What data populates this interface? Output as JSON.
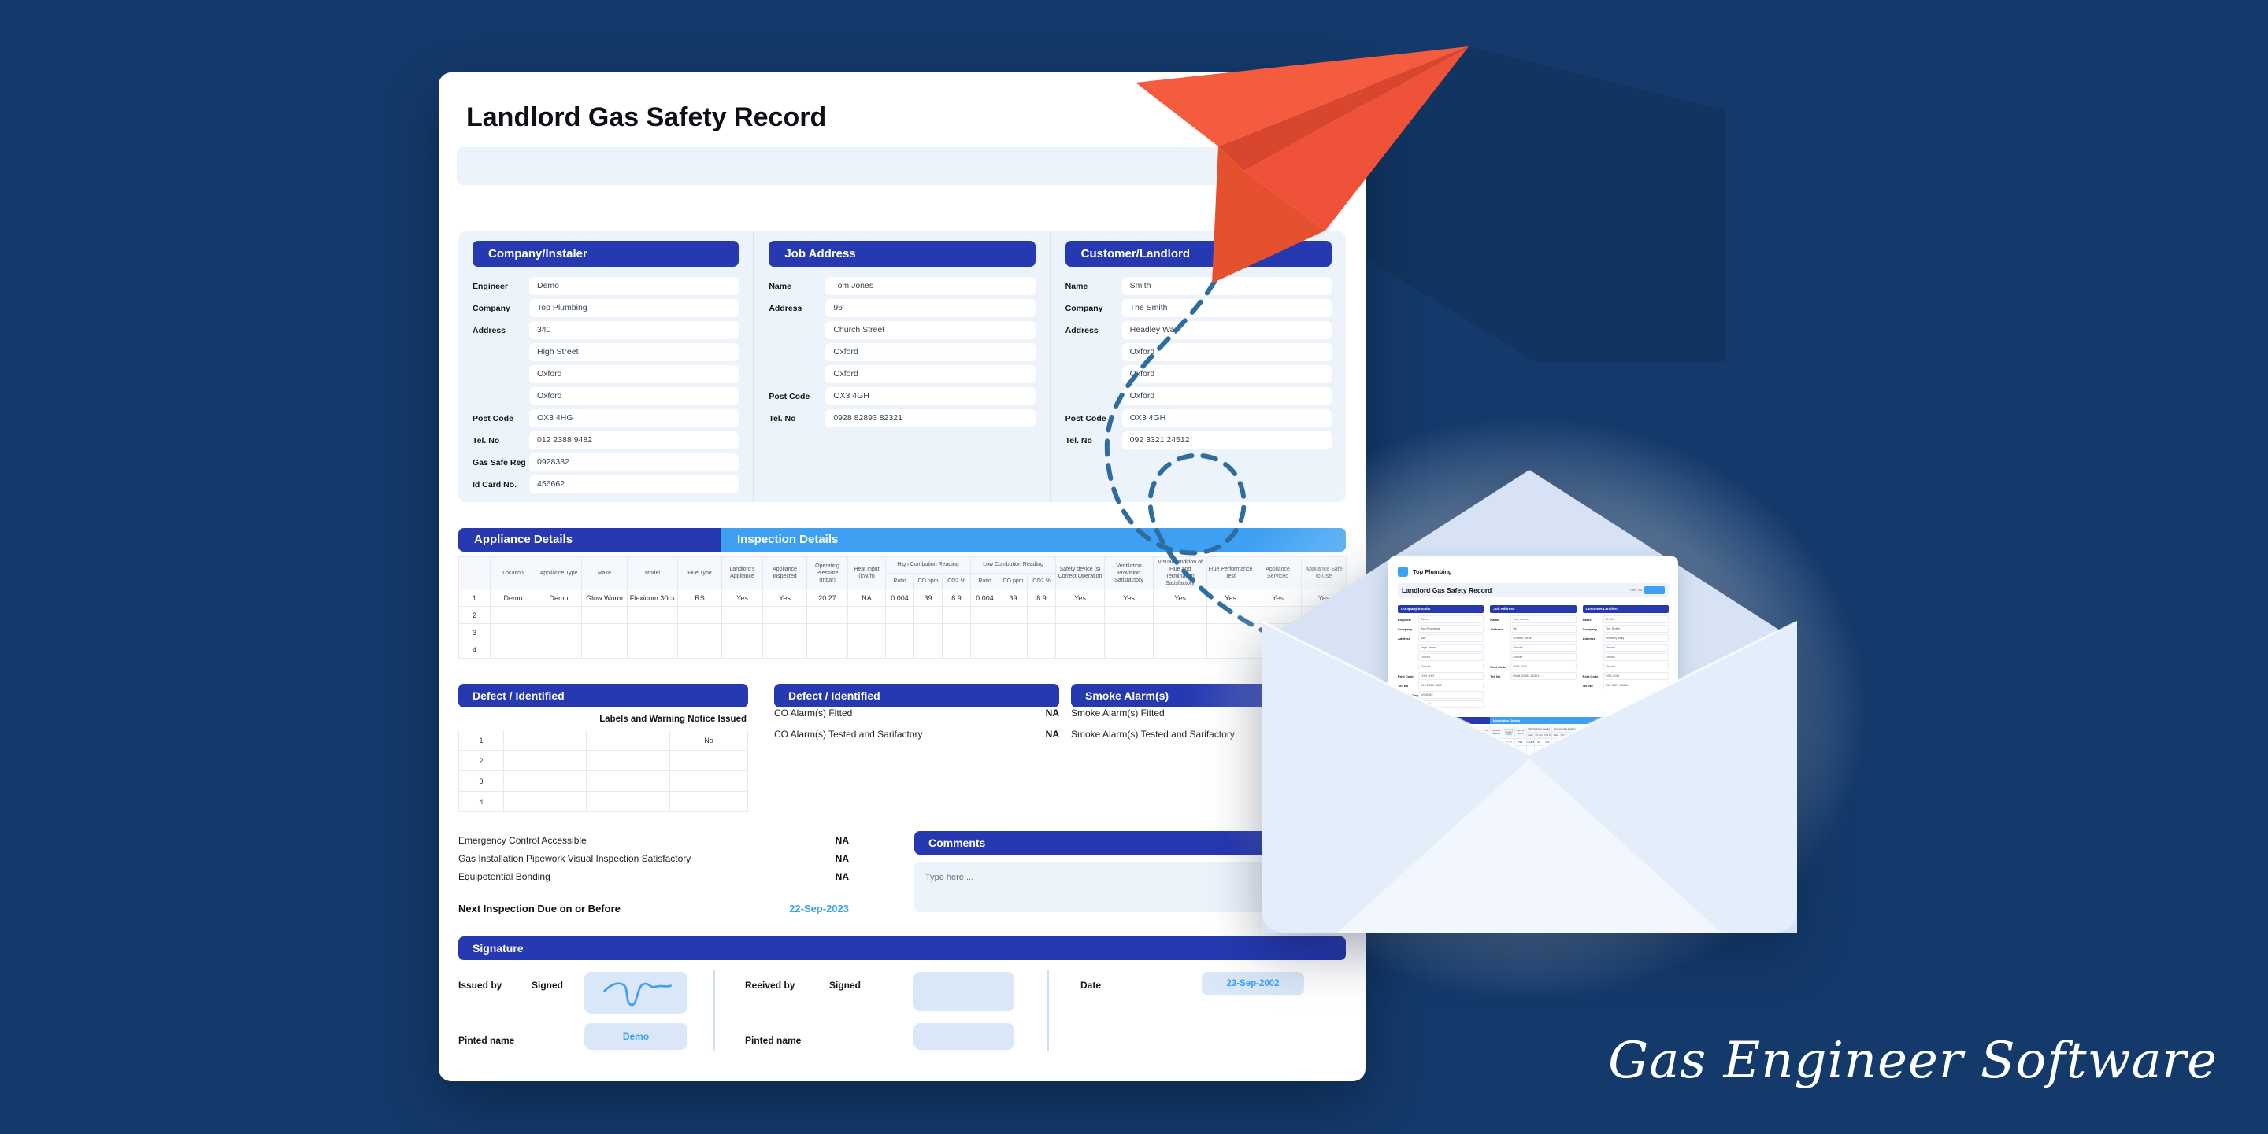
{
  "page": {
    "brand": "Gas Engineer Software"
  },
  "colors": {
    "background": "#143A6B",
    "header_dark_blue": "#2639B0",
    "header_light_blue": "#3DA0F2",
    "panel_light_blue": "#EDF3FB",
    "signature_box_blue": "#D9E7F8",
    "accent_text_blue": "#3DA0F2",
    "plane_orange": "#F4573D",
    "flight_path_blue": "#2E6D9E"
  },
  "form": {
    "title": "Landlord Gas Safety Record",
    "sections": [
      {
        "header": "Company/Instaler",
        "fields": [
          {
            "label": "Engineer",
            "value": "Demo"
          },
          {
            "label": "Company",
            "value": "Top Plumbing"
          },
          {
            "label": "Address",
            "value": "340"
          },
          {
            "label": "",
            "value": "High Street"
          },
          {
            "label": "",
            "value": "Oxford"
          },
          {
            "label": "",
            "value": "Oxford"
          },
          {
            "label": "Post Code",
            "value": "OX3 4HG"
          },
          {
            "label": "Tel. No",
            "value": "012 2388 9482"
          },
          {
            "label": "Gas Safe Reg",
            "value": "0928382"
          },
          {
            "label": "Id Card No.",
            "value": "456662"
          }
        ]
      },
      {
        "header": "Job Address",
        "fields": [
          {
            "label": "Name",
            "value": "Tom Jones"
          },
          {
            "label": "Address",
            "value": "96"
          },
          {
            "label": "",
            "value": "Church Street"
          },
          {
            "label": "",
            "value": "Oxford"
          },
          {
            "label": "",
            "value": "Oxford"
          },
          {
            "label": "Post Code",
            "value": "OX3 4GH"
          },
          {
            "label": "Tel. No",
            "value": "0928 82893 82321"
          }
        ]
      },
      {
        "header": "Customer/Landlord",
        "fields": [
          {
            "label": "Name",
            "value": "Smith"
          },
          {
            "label": "Company",
            "value": "The Smith"
          },
          {
            "label": "Address",
            "value": "Headley Way"
          },
          {
            "label": "",
            "value": "Oxford"
          },
          {
            "label": "",
            "value": "Oxford"
          },
          {
            "label": "",
            "value": "Oxford"
          },
          {
            "label": "Post Code",
            "value": "OX3 4GH"
          },
          {
            "label": "Tel. No",
            "value": "092 3321 24512"
          }
        ]
      }
    ],
    "inspection_table": {
      "appliance_header": "Appliance Details",
      "inspection_header": "Inspection Details",
      "simple_columns_left": [
        "",
        "Location",
        "Appliance Type",
        "Make",
        "Model",
        "Flue Type",
        "Landlord's Appliance",
        "Appliance Inspected",
        "Operating Pressure (mbar)",
        "Heat Input (kW/h)"
      ],
      "group_high": "High Combution Reading",
      "group_low": "Low Combution Reading",
      "sub_columns": [
        "Ratio",
        "CO ppm",
        "CO2 %",
        "Ratio",
        "CO ppm",
        "CO2 %"
      ],
      "simple_columns_right": [
        "Safety device (s) Correct Operation",
        "Ventilation Provision Satisfactory",
        "Visual condition of Flue and Termination Satisfactory",
        "Flue Performance Test",
        "Appliance Serviced",
        "Appliance Safe to Use"
      ],
      "rows": [
        [
          "1",
          "Demo",
          "Demo",
          "Glow Worm",
          "Flexicom 30cx",
          "RS",
          "Yes",
          "Yes",
          "20.27",
          "NA",
          "0.004",
          "39",
          "8.9",
          "0.004",
          "39",
          "8.9",
          "Yes",
          "Yes",
          "Yes",
          "Yes",
          "Yes",
          "Yes"
        ],
        [
          "2",
          "",
          "",
          "",
          "",
          "",
          "",
          "",
          "",
          "",
          "",
          "",
          "",
          "",
          "",
          "",
          "",
          "",
          "",
          "",
          "",
          ""
        ],
        [
          "3",
          "",
          "",
          "",
          "",
          "",
          "",
          "",
          "",
          "",
          "",
          "",
          "",
          "",
          "",
          "",
          "",
          "",
          "",
          "",
          "",
          ""
        ],
        [
          "4",
          "",
          "",
          "",
          "",
          "",
          "",
          "",
          "",
          "",
          "",
          "",
          "",
          "",
          "",
          "",
          "",
          "",
          "",
          "",
          "",
          ""
        ]
      ]
    },
    "defect_left": {
      "header": "Defect / Identified",
      "caption": "Labels and Warning Notice Issued",
      "rows": [
        [
          "1",
          "",
          "",
          "No"
        ],
        [
          "2",
          "",
          "",
          ""
        ],
        [
          "3",
          "",
          "",
          ""
        ],
        [
          "4",
          "",
          "",
          ""
        ]
      ]
    },
    "defect_mid": {
      "header": "Defect / Identified",
      "rows": [
        {
          "label": "CO Alarm(s) Fitted",
          "value": "NA"
        },
        {
          "label": "CO Alarm(s) Tested and Sarifactory",
          "value": "NA"
        }
      ]
    },
    "smoke": {
      "header": "Smoke Alarm(s)",
      "rows": [
        {
          "label": "Smoke Alarm(s) Fitted",
          "value": ""
        },
        {
          "label": "Smoke Alarm(s) Tested and Sarifactory",
          "value": ""
        }
      ]
    },
    "checks": {
      "rows": [
        {
          "label": "Emergency Control Accessible",
          "value": "NA"
        },
        {
          "label": "Gas Installation Pipework Visual Inspection Satisfactory",
          "value": "NA"
        },
        {
          "label": "Equipotential Bonding",
          "value": "NA"
        }
      ],
      "next_inspection_label": "Next Inspection Due on or Before",
      "next_inspection_date": "22-Sep-2023"
    },
    "comments": {
      "header": "Comments",
      "placeholder": "Type here...."
    },
    "signature": {
      "header": "Signature",
      "issued_by_label": "Issued by",
      "signed_label": "Signed",
      "printed_name_label": "Pinted name",
      "issued_printed_name": "Demo",
      "received_by_label": "Reeived by",
      "signed_label_2": "Signed",
      "printed_name_label_2": "Pinted name",
      "date_label": "Date",
      "date_value": "23-Sep-2002"
    }
  },
  "envelope_doc": {
    "company": "Top Plumbing",
    "title": "Landlord Gas Safety Record",
    "cert_label": "Cert. No"
  }
}
